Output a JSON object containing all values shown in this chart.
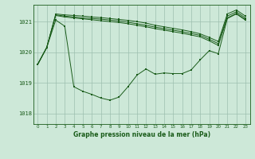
{
  "title": "Graphe pression niveau de la mer (hPa)",
  "background_color": "#cde8d8",
  "plot_bg_color": "#cde8d8",
  "grid_color": "#9dbfaf",
  "line_color": "#1a5c1a",
  "marker_color": "#1a5c1a",
  "x_labels": [
    "0",
    "1",
    "2",
    "3",
    "4",
    "5",
    "6",
    "7",
    "8",
    "9",
    "10",
    "11",
    "12",
    "13",
    "14",
    "15",
    "16",
    "17",
    "18",
    "19",
    "20",
    "21",
    "22",
    "23"
  ],
  "ylim": [
    1017.65,
    1021.55
  ],
  "yticks": [
    1018,
    1019,
    1020,
    1021
  ],
  "top_series": [
    1019.6,
    1020.15,
    1021.25,
    1021.22,
    1021.2,
    1021.18,
    1021.15,
    1021.13,
    1021.1,
    1021.07,
    1021.04,
    1021.0,
    1020.95,
    1020.88,
    1020.83,
    1020.78,
    1020.73,
    1020.67,
    1020.6,
    1020.48,
    1020.35,
    1021.25,
    1021.38,
    1021.18
  ],
  "mid_series1": [
    1019.6,
    1020.15,
    1021.22,
    1021.18,
    1021.15,
    1021.12,
    1021.1,
    1021.08,
    1021.05,
    1021.02,
    1020.98,
    1020.93,
    1020.88,
    1020.82,
    1020.77,
    1020.72,
    1020.67,
    1020.61,
    1020.55,
    1020.42,
    1020.28,
    1021.18,
    1021.32,
    1021.12
  ],
  "mid_series2": [
    1019.6,
    1020.15,
    1021.2,
    1021.15,
    1021.12,
    1021.09,
    1021.06,
    1021.03,
    1021.0,
    1020.97,
    1020.93,
    1020.88,
    1020.83,
    1020.77,
    1020.72,
    1020.67,
    1020.62,
    1020.56,
    1020.5,
    1020.37,
    1020.22,
    1021.12,
    1021.27,
    1021.07
  ],
  "main_series": [
    1019.6,
    1020.15,
    1021.05,
    1020.85,
    1018.87,
    1018.72,
    1018.62,
    1018.5,
    1018.43,
    1018.53,
    1018.87,
    1019.25,
    1019.45,
    1019.28,
    1019.32,
    1019.3,
    1019.3,
    1019.42,
    1019.75,
    1020.05,
    1019.95,
    1021.1,
    1021.25,
    1021.05
  ]
}
